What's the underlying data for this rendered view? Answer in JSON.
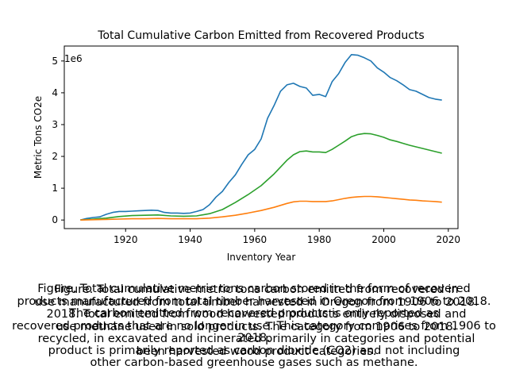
{
  "chart_data": {
    "type": "line",
    "title": "Total Cumulative Carbon Emitted from Recovered Products",
    "xlabel": "Inventory Year",
    "ylabel": "Metric Tons CO2e",
    "y_offset_label": "1e6",
    "xlim": [
      1901,
      2023
    ],
    "ylim": [
      -0.27,
      5.47
    ],
    "x_ticks": [
      1920,
      1940,
      1960,
      1980,
      2000,
      2020
    ],
    "y_ticks": [
      0,
      1,
      2,
      3,
      4,
      5
    ],
    "grid": false,
    "legend": "none",
    "series": [
      {
        "color": "#1f77b4",
        "points": [
          [
            1906,
            0.0
          ],
          [
            1908,
            0.05
          ],
          [
            1910,
            0.08
          ],
          [
            1912,
            0.1
          ],
          [
            1914,
            0.18
          ],
          [
            1916,
            0.24
          ],
          [
            1918,
            0.27
          ],
          [
            1920,
            0.27
          ],
          [
            1922,
            0.28
          ],
          [
            1924,
            0.29
          ],
          [
            1926,
            0.3
          ],
          [
            1928,
            0.31
          ],
          [
            1930,
            0.3
          ],
          [
            1932,
            0.24
          ],
          [
            1934,
            0.22
          ],
          [
            1936,
            0.22
          ],
          [
            1938,
            0.21
          ],
          [
            1940,
            0.22
          ],
          [
            1942,
            0.27
          ],
          [
            1944,
            0.33
          ],
          [
            1946,
            0.48
          ],
          [
            1948,
            0.72
          ],
          [
            1950,
            0.9
          ],
          [
            1952,
            1.18
          ],
          [
            1954,
            1.42
          ],
          [
            1956,
            1.75
          ],
          [
            1958,
            2.05
          ],
          [
            1960,
            2.22
          ],
          [
            1962,
            2.55
          ],
          [
            1964,
            3.2
          ],
          [
            1966,
            3.6
          ],
          [
            1968,
            4.05
          ],
          [
            1970,
            4.25
          ],
          [
            1972,
            4.3
          ],
          [
            1974,
            4.2
          ],
          [
            1976,
            4.15
          ],
          [
            1978,
            3.92
          ],
          [
            1980,
            3.95
          ],
          [
            1982,
            3.88
          ],
          [
            1984,
            4.35
          ],
          [
            1986,
            4.6
          ],
          [
            1988,
            4.95
          ],
          [
            1990,
            5.2
          ],
          [
            1992,
            5.18
          ],
          [
            1994,
            5.1
          ],
          [
            1996,
            5.0
          ],
          [
            1998,
            4.78
          ],
          [
            2000,
            4.65
          ],
          [
            2002,
            4.48
          ],
          [
            2004,
            4.38
          ],
          [
            2006,
            4.25
          ],
          [
            2008,
            4.1
          ],
          [
            2010,
            4.05
          ],
          [
            2012,
            3.95
          ],
          [
            2014,
            3.85
          ],
          [
            2016,
            3.8
          ],
          [
            2018,
            3.77
          ]
        ]
      },
      {
        "color": "#2ca02c",
        "points": [
          [
            1906,
            0.0
          ],
          [
            1910,
            0.03
          ],
          [
            1914,
            0.06
          ],
          [
            1918,
            0.11
          ],
          [
            1922,
            0.14
          ],
          [
            1926,
            0.15
          ],
          [
            1930,
            0.16
          ],
          [
            1934,
            0.13
          ],
          [
            1938,
            0.12
          ],
          [
            1942,
            0.13
          ],
          [
            1946,
            0.2
          ],
          [
            1950,
            0.33
          ],
          [
            1954,
            0.55
          ],
          [
            1958,
            0.8
          ],
          [
            1962,
            1.08
          ],
          [
            1966,
            1.45
          ],
          [
            1970,
            1.88
          ],
          [
            1972,
            2.05
          ],
          [
            1974,
            2.15
          ],
          [
            1976,
            2.17
          ],
          [
            1978,
            2.14
          ],
          [
            1980,
            2.14
          ],
          [
            1982,
            2.12
          ],
          [
            1984,
            2.22
          ],
          [
            1986,
            2.35
          ],
          [
            1988,
            2.48
          ],
          [
            1990,
            2.62
          ],
          [
            1992,
            2.69
          ],
          [
            1994,
            2.72
          ],
          [
            1996,
            2.71
          ],
          [
            1998,
            2.66
          ],
          [
            2000,
            2.6
          ],
          [
            2002,
            2.52
          ],
          [
            2004,
            2.47
          ],
          [
            2006,
            2.41
          ],
          [
            2008,
            2.35
          ],
          [
            2010,
            2.3
          ],
          [
            2012,
            2.25
          ],
          [
            2014,
            2.2
          ],
          [
            2016,
            2.15
          ],
          [
            2018,
            2.1
          ]
        ]
      },
      {
        "color": "#ff7f0e",
        "points": [
          [
            1906,
            0.0
          ],
          [
            1910,
            0.01
          ],
          [
            1914,
            0.02
          ],
          [
            1918,
            0.03
          ],
          [
            1922,
            0.04
          ],
          [
            1926,
            0.04
          ],
          [
            1930,
            0.05
          ],
          [
            1934,
            0.04
          ],
          [
            1938,
            0.04
          ],
          [
            1942,
            0.04
          ],
          [
            1946,
            0.06
          ],
          [
            1950,
            0.1
          ],
          [
            1954,
            0.15
          ],
          [
            1958,
            0.22
          ],
          [
            1962,
            0.3
          ],
          [
            1966,
            0.4
          ],
          [
            1970,
            0.52
          ],
          [
            1972,
            0.57
          ],
          [
            1974,
            0.59
          ],
          [
            1976,
            0.59
          ],
          [
            1978,
            0.58
          ],
          [
            1980,
            0.58
          ],
          [
            1982,
            0.58
          ],
          [
            1984,
            0.6
          ],
          [
            1986,
            0.64
          ],
          [
            1988,
            0.68
          ],
          [
            1990,
            0.71
          ],
          [
            1992,
            0.73
          ],
          [
            1994,
            0.74
          ],
          [
            1996,
            0.74
          ],
          [
            1998,
            0.73
          ],
          [
            2000,
            0.71
          ],
          [
            2002,
            0.69
          ],
          [
            2004,
            0.67
          ],
          [
            2006,
            0.65
          ],
          [
            2008,
            0.63
          ],
          [
            2010,
            0.62
          ],
          [
            2012,
            0.6
          ],
          [
            2014,
            0.59
          ],
          [
            2016,
            0.58
          ],
          [
            2018,
            0.56
          ]
        ]
      }
    ]
  },
  "caption": {
    "layer_a": "Figure. Total cumulative metric tons carbon stored in the form of recovered\nproducts manufactured from total timber harvested in Oregon from 1906 to 2018.\nThe carbon emitted from recovered products is only reported as\nrecovered products that are no longer in use. This category comprises from 1906 to 2018.\nproduct is primarily reported as carbon dioxide (CO2) and not including\nother carbon-based greenhouse gases such as methane.",
    "layer_b": "Figure. Total cumulative metric tons carbon emitted from recovered in\nuse manufactured from total timber harvested in Oregon from 1906 to 2018.\n2018. Total emitted from wood harvested products entirely disposed and\nuse methane used in sold products. The category from 1906 to 2018.\nrecycled, in excavated and incinerated primarily in categories and potential\nbeen harvested wood product categories."
  }
}
